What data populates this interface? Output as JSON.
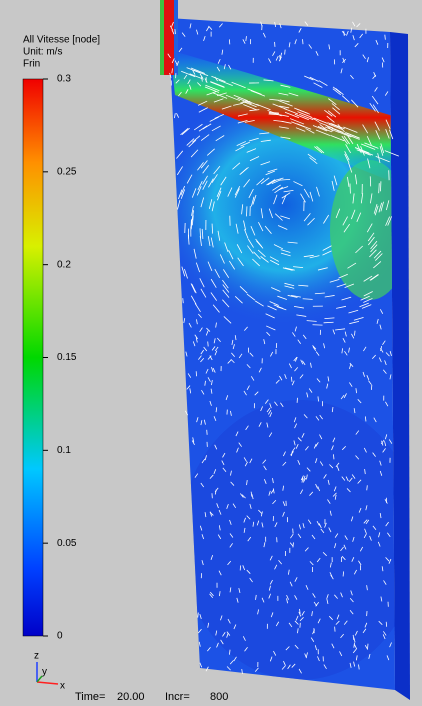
{
  "legend": {
    "title": "All Vitesse [node]",
    "unit": "Unit: m/s",
    "set": "Frin"
  },
  "colorbar": {
    "lim": [
      0,
      0.3
    ],
    "ticks": [
      0,
      0.05,
      0.1,
      0.15,
      0.2,
      0.25,
      0.3
    ]
  },
  "triad": {
    "z": "z",
    "y": "y",
    "x": "x"
  },
  "status": {
    "time_label": "Time=",
    "time_value": "20.00",
    "incr_label": "Incr=",
    "incr_value": "800"
  }
}
